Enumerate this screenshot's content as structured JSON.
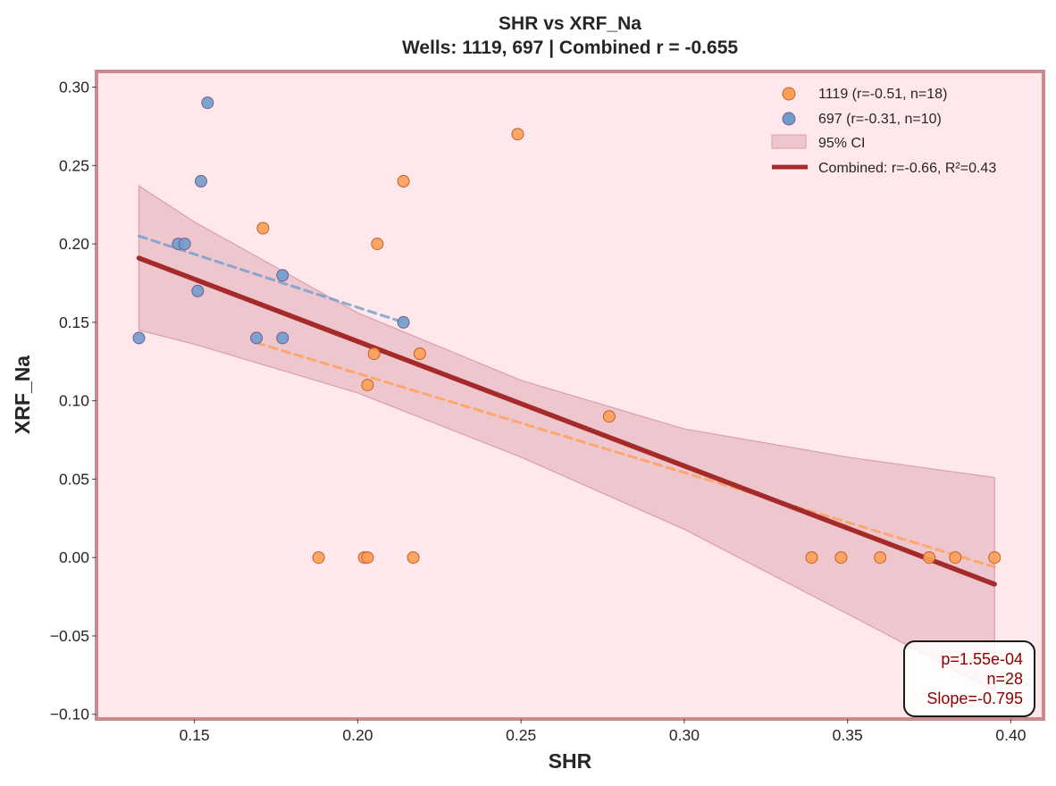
{
  "chart_data": {
    "type": "scatter",
    "title": "SHR vs XRF_Na",
    "subtitle": "Wells: 1119, 697 | Combined r = -0.655",
    "xlabel": "SHR",
    "ylabel": "XRF_Na",
    "xlim": [
      0.12,
      0.41
    ],
    "ylim": [
      -0.103,
      0.31
    ],
    "xticks": [
      0.15,
      0.2,
      0.25,
      0.3,
      0.35,
      0.4
    ],
    "xtick_labels": [
      "0.15",
      "0.20",
      "0.25",
      "0.30",
      "0.35",
      "0.40"
    ],
    "yticks": [
      0.3,
      0.25,
      0.2,
      0.15,
      0.1,
      0.05,
      0.0,
      -0.05,
      -0.1
    ],
    "ytick_labels": [
      "0.30",
      "0.25",
      "0.20",
      "0.15",
      "0.10",
      "0.05",
      "0.00",
      "−0.05",
      "−0.10"
    ],
    "grid": false,
    "legend_position": "top-right",
    "colors": {
      "background": "#ffe8ec",
      "frame": "#c98b8b",
      "well_1119": "#ff9f55",
      "well_697": "#6f9ccc",
      "combined_fit": "#a52a2a",
      "ci_band": "#d8a0a8"
    },
    "series": [
      {
        "name": "1119 (r=-0.51, n=18)",
        "kind": "scatter",
        "points": [
          [
            0.171,
            0.21
          ],
          [
            0.188,
            0.0
          ],
          [
            0.202,
            0.0
          ],
          [
            0.203,
            0.0
          ],
          [
            0.203,
            0.11
          ],
          [
            0.205,
            0.13
          ],
          [
            0.206,
            0.2
          ],
          [
            0.214,
            0.24
          ],
          [
            0.217,
            0.0
          ],
          [
            0.219,
            0.13
          ],
          [
            0.249,
            0.27
          ],
          [
            0.277,
            0.09
          ],
          [
            0.339,
            0.0
          ],
          [
            0.348,
            0.0
          ],
          [
            0.36,
            0.0
          ],
          [
            0.375,
            0.0
          ],
          [
            0.383,
            0.0
          ],
          [
            0.395,
            0.0
          ]
        ],
        "fit": [
          [
            0.169,
            0.137
          ],
          [
            0.395,
            -0.006
          ]
        ]
      },
      {
        "name": "697 (r=-0.31, n=10)",
        "kind": "scatter",
        "points": [
          [
            0.133,
            0.14
          ],
          [
            0.145,
            0.2
          ],
          [
            0.147,
            0.2
          ],
          [
            0.151,
            0.17
          ],
          [
            0.152,
            0.24
          ],
          [
            0.154,
            0.29
          ],
          [
            0.169,
            0.14
          ],
          [
            0.177,
            0.18
          ],
          [
            0.177,
            0.14
          ],
          [
            0.214,
            0.15
          ]
        ],
        "fit": [
          [
            0.133,
            0.205
          ],
          [
            0.214,
            0.15
          ]
        ]
      },
      {
        "name": "Combined: r=-0.66, R²=0.43",
        "kind": "line",
        "points": [
          [
            0.133,
            0.191
          ],
          [
            0.395,
            -0.017
          ]
        ]
      }
    ],
    "confidence_band": {
      "name": "95% CI",
      "x": [
        0.133,
        0.15,
        0.2,
        0.25,
        0.3,
        0.35,
        0.395
      ],
      "upper": [
        0.237,
        0.214,
        0.156,
        0.113,
        0.082,
        0.064,
        0.051
      ],
      "lower": [
        0.145,
        0.136,
        0.105,
        0.064,
        0.018,
        -0.036,
        -0.085
      ]
    },
    "stats_box": {
      "lines": [
        "p=1.55e-04",
        "n=28",
        "Slope=-0.795"
      ],
      "position": "bottom-right"
    }
  }
}
